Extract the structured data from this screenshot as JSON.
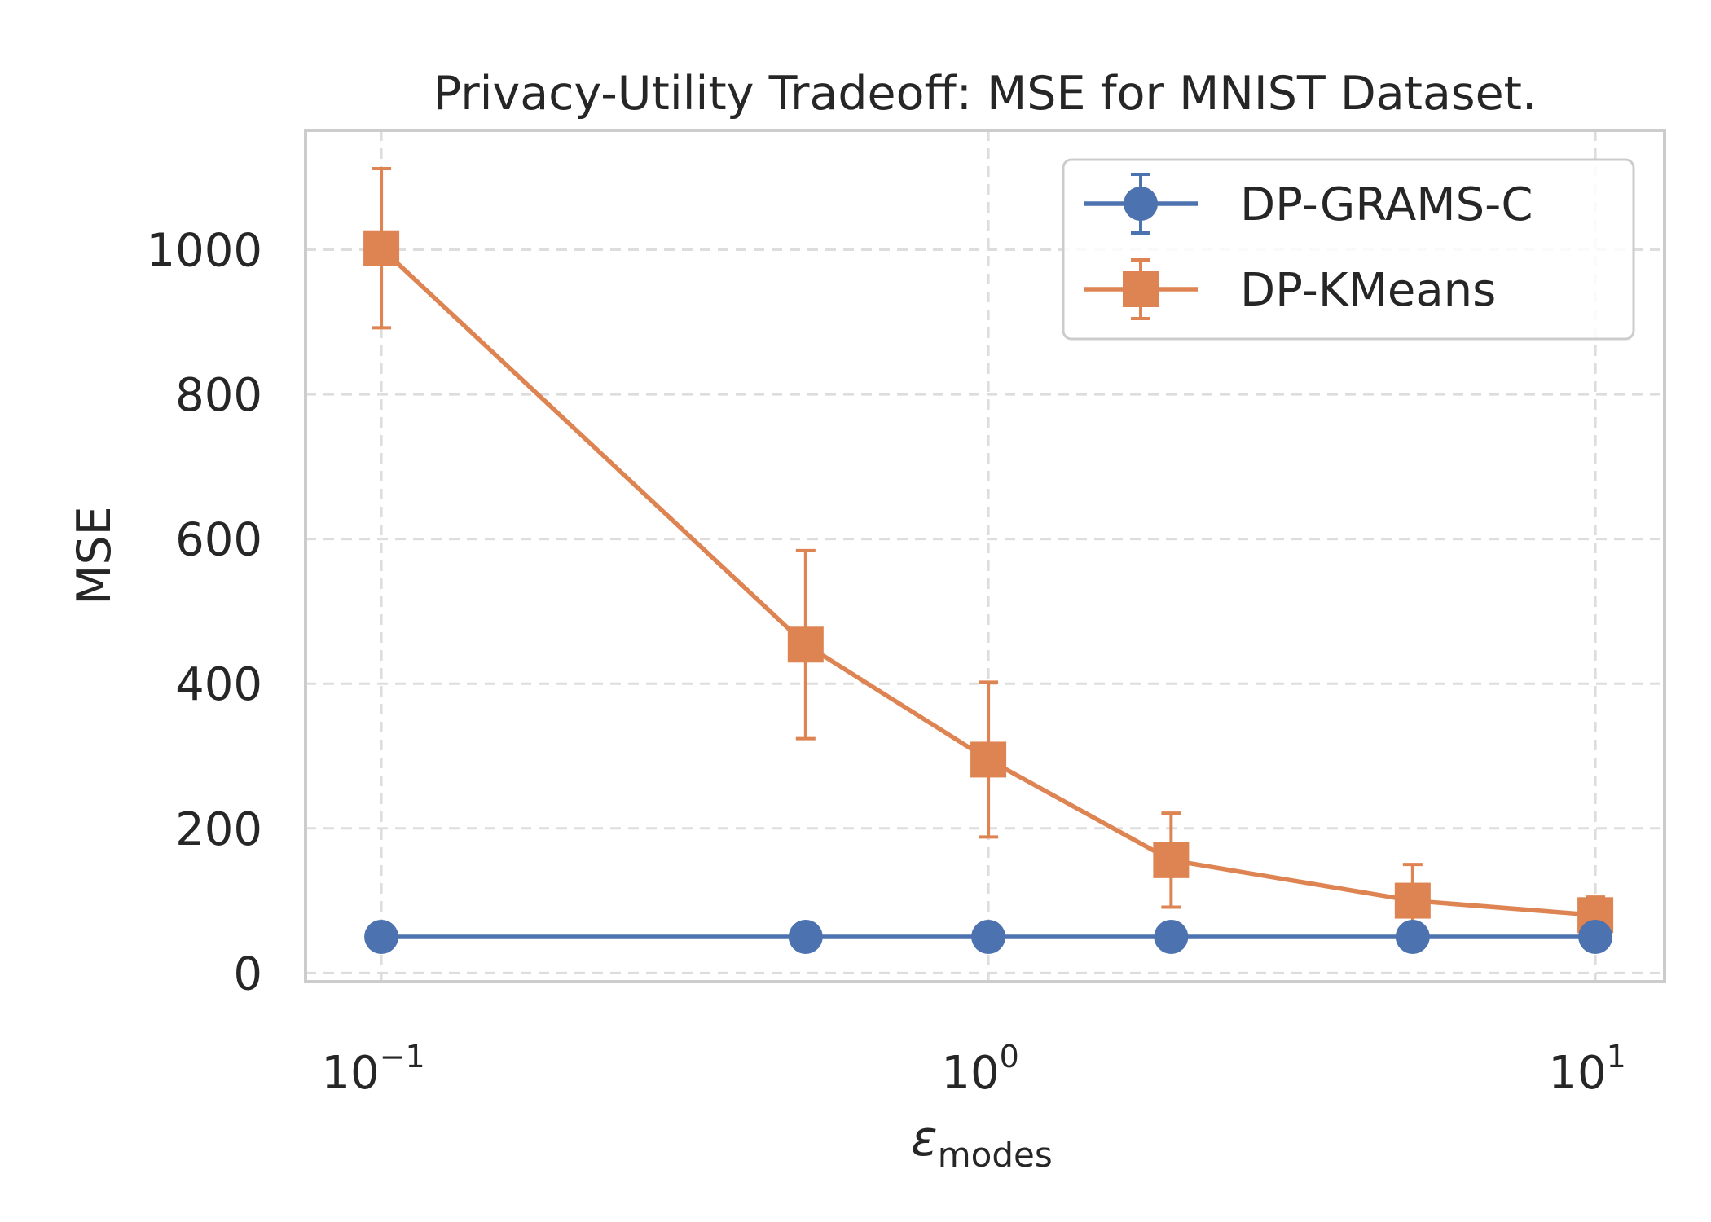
{
  "chart_data": {
    "type": "line",
    "title": "Privacy-Utility Tradeoff: MSE for MNIST Dataset.",
    "xlabel": {
      "main": "ε",
      "sub": "modes"
    },
    "ylabel": "MSE",
    "x_scale": "log",
    "xlim": [
      0.075,
      13.0
    ],
    "ylim": [
      -12,
      1165
    ],
    "x_ticks": [
      {
        "value": 0.1,
        "base": "10",
        "exp": "−1"
      },
      {
        "value": 1,
        "base": "10",
        "exp": "0"
      },
      {
        "value": 10,
        "base": "10",
        "exp": "1"
      }
    ],
    "y_ticks": [
      0,
      200,
      400,
      600,
      800,
      1000
    ],
    "grid": true,
    "legend_position": "top-right",
    "x": [
      0.1,
      0.5,
      1,
      2,
      5,
      10
    ],
    "series": [
      {
        "name": "DP-GRAMS-C",
        "color": "#4c72b0",
        "marker": "circle",
        "values": [
          50,
          50,
          50,
          50,
          50,
          50
        ],
        "err": [
          0,
          0,
          0,
          0,
          0,
          0
        ]
      },
      {
        "name": "DP-KMeans",
        "color": "#dd8452",
        "marker": "square",
        "values": [
          1002,
          454,
          295,
          156,
          100,
          80
        ],
        "err": [
          110,
          130,
          107,
          65,
          50,
          25
        ]
      }
    ]
  }
}
